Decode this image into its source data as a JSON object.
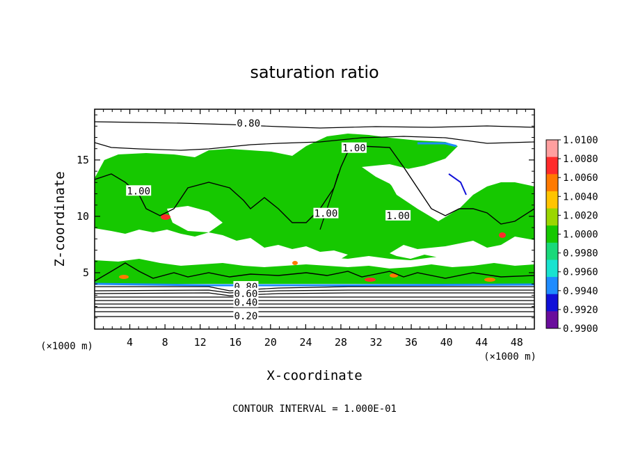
{
  "chart_data": {
    "type": "heatmap",
    "title": "saturation ratio",
    "xlabel": "X-coordinate",
    "ylabel": "Z-coordinate",
    "x_unit": "(×1000 m)",
    "z_unit": "(×1000 m)",
    "xlim": [
      0,
      50
    ],
    "ylim": [
      0,
      19.5
    ],
    "xticks": [
      4,
      8,
      12,
      16,
      20,
      24,
      28,
      32,
      36,
      40,
      44,
      48
    ],
    "yticks": [
      5,
      10,
      15
    ],
    "contour_interval_text": "CONTOUR INTERVAL = 1.000E-01",
    "colorbar": {
      "levels": [
        "1.0100",
        "1.0080",
        "1.0060",
        "1.0040",
        "1.0020",
        "1.0000",
        "0.9980",
        "0.9960",
        "0.9940",
        "0.9920",
        "0.9900"
      ],
      "colors": [
        "#ff9f9f",
        "#ff2b2b",
        "#ff7a00",
        "#ffc400",
        "#9bd600",
        "#16c800",
        "#19d97a",
        "#19e3d0",
        "#1f8cff",
        "#1010d8",
        "#6a0d9c"
      ]
    },
    "contour_labels": [
      {
        "text": "0.80",
        "x": 17.5,
        "z": 18.2
      },
      {
        "text": "1.00",
        "x": 29.5,
        "z": 16.0
      },
      {
        "text": "1.00",
        "x": 5.0,
        "z": 12.2
      },
      {
        "text": "1.00",
        "x": 34.5,
        "z": 10.0
      },
      {
        "text": "1.00",
        "x": 26.3,
        "z": 10.2
      },
      {
        "text": "0.80",
        "x": 17.2,
        "z": 3.7
      },
      {
        "text": "0.60",
        "x": 17.2,
        "z": 3.1
      },
      {
        "text": "0.40",
        "x": 17.2,
        "z": 2.3
      },
      {
        "text": "0.20",
        "x": 17.2,
        "z": 1.1
      }
    ],
    "colors": {
      "saturated_fill": "#16c800",
      "subsaturated_fill": "#ffffff",
      "contour_line": "#000000"
    }
  }
}
